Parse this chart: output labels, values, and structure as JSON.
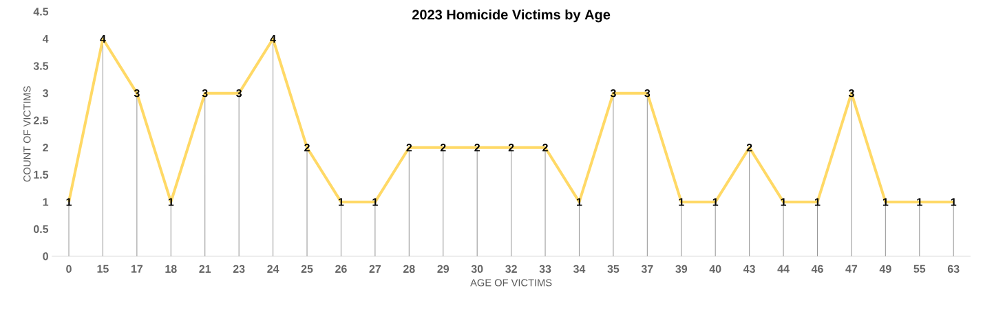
{
  "chart_data": {
    "type": "line",
    "title": "2023 Homicide Victims by Age",
    "xlabel": "AGE OF VICTIMS",
    "ylabel": "COUNT OF VICTIMS",
    "categories": [
      "0",
      "15",
      "17",
      "18",
      "21",
      "23",
      "24",
      "25",
      "26",
      "27",
      "28",
      "29",
      "30",
      "32",
      "33",
      "34",
      "35",
      "37",
      "39",
      "40",
      "43",
      "44",
      "46",
      "47",
      "49",
      "55",
      "63"
    ],
    "values": [
      1,
      4,
      3,
      1,
      3,
      3,
      4,
      2,
      1,
      1,
      2,
      2,
      2,
      2,
      2,
      1,
      3,
      3,
      1,
      1,
      2,
      1,
      1,
      3,
      1,
      1,
      1
    ],
    "color": "#ffd966",
    "ylim": [
      0,
      4.5
    ],
    "yticks": [
      0,
      0.5,
      1,
      1.5,
      2,
      2.5,
      3,
      3.5,
      4,
      4.5
    ],
    "data_labels": true,
    "marker": "none"
  }
}
